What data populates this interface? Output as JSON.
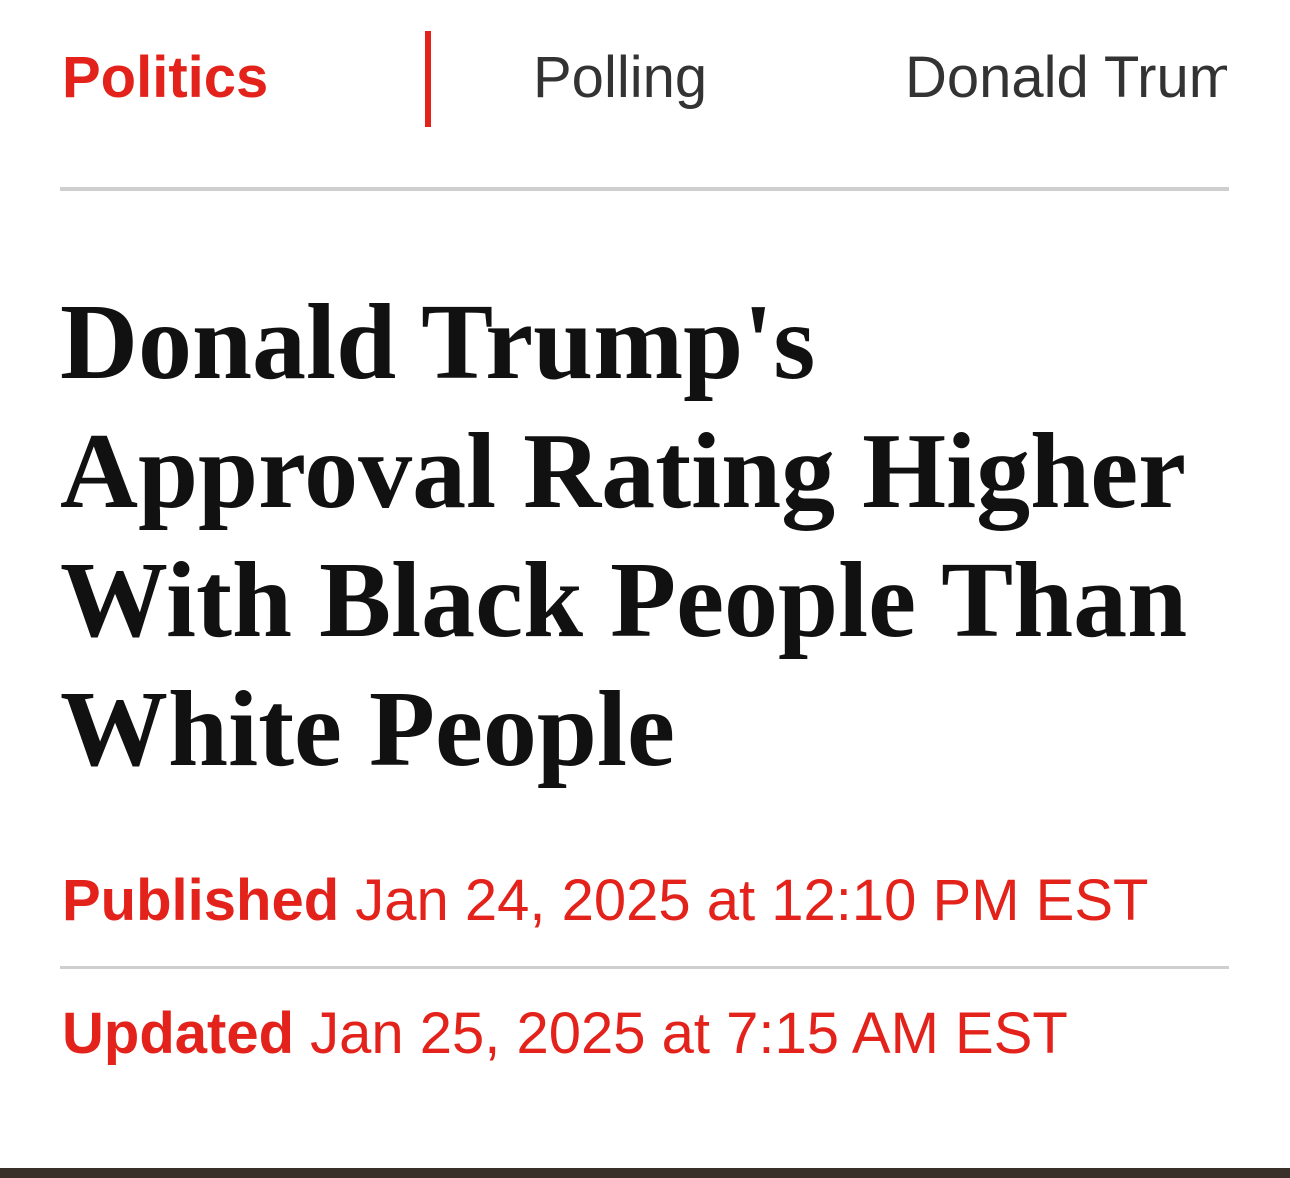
{
  "nav": {
    "items": [
      "Politics",
      "Polling",
      "Donald Trum"
    ]
  },
  "headline": {
    "lines": [
      "Donald Trump's",
      "Approval Rating Higher",
      "With Black People Than",
      "White People"
    ]
  },
  "meta": {
    "published": {
      "label": "Published",
      "value": "Jan 24, 2025 at 12:10 PM EST"
    },
    "updated": {
      "label": "Updated",
      "value": "Jan 25, 2025 at 7:15 AM EST"
    }
  }
}
